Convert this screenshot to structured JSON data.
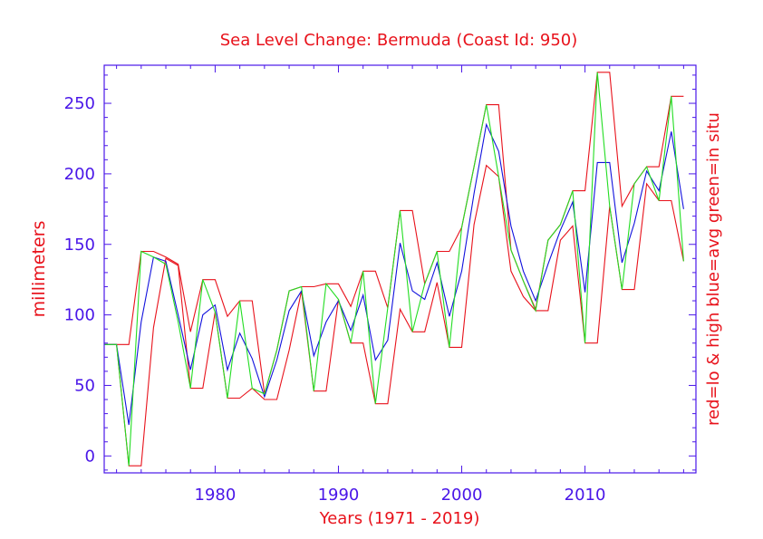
{
  "chart_data": {
    "type": "line",
    "title": "Sea Level Change: Bermuda (Coast Id: 950)",
    "xlabel": "Years (1971 - 2019)",
    "ylabel": "millimeters",
    "right_label": "red=lo & high  blue=avg  green=in situ",
    "xlim": [
      1971,
      2019
    ],
    "ylim": [
      -12,
      277
    ],
    "x_ticks": [
      1980,
      1990,
      2000,
      2010
    ],
    "y_ticks": [
      0,
      50,
      100,
      150,
      200,
      250
    ],
    "colors": {
      "axis": "#4a17e8",
      "text": "#e8121b",
      "low_high": "#e8121b",
      "average": "#1111dd",
      "in_situ": "#22dd22"
    },
    "x": [
      1971,
      1972,
      1973,
      1974,
      1975,
      1976,
      1977,
      1978,
      1979,
      1980,
      1981,
      1982,
      1983,
      1984,
      1985,
      1986,
      1987,
      1988,
      1989,
      1990,
      1991,
      1992,
      1993,
      1994,
      1995,
      1996,
      1997,
      1998,
      1999,
      2000,
      2001,
      2002,
      2003,
      2004,
      2005,
      2006,
      2007,
      2008,
      2009,
      2010,
      2011,
      2012,
      2013,
      2014,
      2015,
      2016,
      2017,
      2018
    ],
    "series": [
      {
        "name": "high",
        "color_key": "low_high",
        "values": [
          79,
          79,
          79,
          145,
          145,
          141,
          136,
          88,
          125,
          125,
          99,
          110,
          110,
          44,
          75,
          117,
          120,
          120,
          122,
          122,
          106,
          131,
          131,
          105,
          174,
          174,
          122,
          145,
          145,
          162,
          205,
          249,
          249,
          146,
          124,
          104,
          153,
          164,
          188,
          188,
          272,
          272,
          177,
          193,
          205,
          205,
          255,
          255
        ]
      },
      {
        "name": "low",
        "color_key": "low_high",
        "values": [
          79,
          79,
          -7,
          -7,
          91,
          140,
          135,
          48,
          48,
          102,
          41,
          41,
          48,
          40,
          40,
          75,
          117,
          46,
          46,
          111,
          80,
          80,
          37,
          37,
          104,
          88,
          88,
          123,
          77,
          77,
          164,
          206,
          198,
          131,
          113,
          103,
          103,
          153,
          163,
          80,
          80,
          177,
          118,
          118,
          193,
          181,
          181,
          138
        ]
      },
      {
        "name": "average",
        "color_key": "average",
        "values": [
          79,
          79,
          22,
          95,
          141,
          138,
          100,
          61,
          100,
          107,
          61,
          87,
          69,
          42,
          68,
          103,
          117,
          71,
          95,
          110,
          89,
          114,
          68,
          82,
          151,
          117,
          111,
          137,
          99,
          131,
          186,
          235,
          216,
          163,
          131,
          110,
          136,
          160,
          180,
          116,
          208,
          208,
          137,
          165,
          202,
          188,
          230,
          175
        ]
      },
      {
        "name": "in situ",
        "color_key": "in_situ",
        "values": [
          79,
          79,
          -7,
          145,
          141,
          136,
          95,
          48,
          125,
          102,
          41,
          110,
          48,
          44,
          75,
          117,
          120,
          46,
          122,
          111,
          80,
          131,
          37,
          105,
          174,
          88,
          122,
          145,
          77,
          162,
          205,
          249,
          198,
          146,
          124,
          103,
          153,
          164,
          188,
          80,
          272,
          177,
          118,
          193,
          205,
          181,
          255,
          138
        ]
      }
    ]
  }
}
